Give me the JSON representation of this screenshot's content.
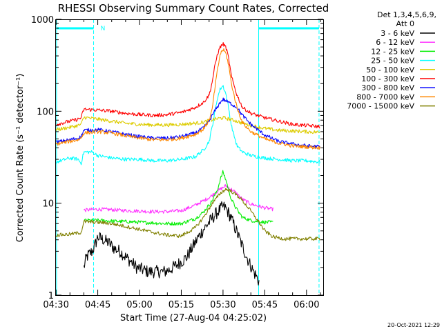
{
  "chart_data": {
    "type": "line",
    "title": "RHESSI Observing Summary Count Rates, Corrected",
    "xlabel": "Start Time (27-Aug-04 04:25:02)",
    "ylabel": "Corrected Count Rate (s⁻¹ detector⁻¹)",
    "yscale": "log",
    "ylim": [
      1,
      1000
    ],
    "xlim_minutes": [
      4.97,
      101.0
    ],
    "x_ticks": [
      {
        "m": 5,
        "label": "04:30"
      },
      {
        "m": 20,
        "label": "04:45"
      },
      {
        "m": 35,
        "label": "05:00"
      },
      {
        "m": 50,
        "label": "05:15"
      },
      {
        "m": 65,
        "label": "05:30"
      },
      {
        "m": 80,
        "label": "05:45"
      },
      {
        "m": 95,
        "label": "06:00"
      }
    ],
    "y_ticks": [
      {
        "v": 1,
        "label": "1"
      },
      {
        "v": 10,
        "label": "10"
      },
      {
        "v": 100,
        "label": "100"
      },
      {
        "v": 1000,
        "label": "1000"
      }
    ],
    "legend_title": [
      "Det 1,3,4,5,6,9,",
      "Att 0"
    ],
    "legend_position": "right",
    "date_stamp": "20-Oct-2021 12:29",
    "flag_labels": [
      {
        "m": 20.5,
        "text": "N"
      }
    ],
    "markers": {
      "solid_vertical_at": [
        5.2,
        77.8
      ],
      "dashed_vertical_at": [
        18.5,
        99.5
      ],
      "top_bars": [
        [
          5.2,
          18.5
        ],
        [
          77.8,
          99.5
        ]
      ]
    },
    "series": [
      {
        "name": "3 - 6 keV",
        "color": "#000000",
        "x": [
          15,
          16,
          17,
          18,
          19,
          20,
          22,
          24,
          26,
          28,
          30,
          32,
          34,
          36,
          38,
          40,
          42,
          44,
          46,
          48,
          50,
          52,
          54,
          56,
          58,
          60,
          62,
          64,
          65,
          66,
          67,
          68,
          70,
          72,
          74,
          76,
          78
        ],
        "y": [
          2.0,
          2.6,
          2.8,
          3.0,
          3.5,
          4.3,
          4.0,
          3.7,
          3.2,
          3.0,
          2.6,
          2.3,
          2.0,
          1.9,
          1.8,
          1.8,
          1.8,
          1.8,
          1.9,
          2.1,
          2.3,
          2.6,
          3.3,
          4.2,
          5.2,
          6.2,
          7.4,
          8.6,
          9.2,
          8.8,
          7.8,
          6.8,
          4.8,
          3.4,
          2.4,
          1.8,
          1.4
        ]
      },
      {
        "name": "6 - 12 keV",
        "color": "#ff33ff",
        "x": [
          15,
          20,
          25,
          30,
          35,
          40,
          45,
          50,
          55,
          60,
          63,
          66,
          69,
          72,
          75,
          80,
          83
        ],
        "y": [
          8.4,
          8.6,
          8.5,
          8.3,
          8.2,
          8.1,
          8.1,
          8.3,
          9.5,
          11.5,
          13.5,
          15.5,
          13.5,
          11.0,
          9.8,
          8.9,
          8.6
        ]
      },
      {
        "name": "12 - 25 keV",
        "color": "#00ee00",
        "x": [
          15,
          20,
          25,
          30,
          35,
          40,
          45,
          50,
          55,
          58,
          61,
          63,
          64,
          65,
          66,
          67,
          68,
          70,
          72,
          75,
          80,
          83
        ],
        "y": [
          6.5,
          6.5,
          6.4,
          6.3,
          6.2,
          6.1,
          6.0,
          6.0,
          6.8,
          8.0,
          10.5,
          14.0,
          18.0,
          22.0,
          18.0,
          14.0,
          11.0,
          8.5,
          7.0,
          6.5,
          6.2,
          6.2
        ]
      },
      {
        "name": "25 - 50 keV",
        "color": "#00ffff",
        "x": [
          5,
          10,
          13,
          14,
          15,
          18,
          20,
          25,
          30,
          35,
          40,
          45,
          50,
          55,
          58,
          60,
          61,
          62,
          63,
          64,
          65,
          66,
          67,
          68,
          70,
          72,
          75,
          80,
          85,
          90,
          95,
          100
        ],
        "y": [
          28,
          31,
          30,
          27,
          36,
          36,
          33,
          31,
          30,
          30,
          29,
          29,
          30,
          32,
          38,
          47,
          65,
          95,
          140,
          175,
          190,
          155,
          110,
          70,
          42,
          36,
          33,
          31,
          30,
          29,
          29,
          28
        ]
      },
      {
        "name": "50 - 100 keV",
        "color": "#ddcc00",
        "x": [
          5,
          10,
          13,
          14,
          15,
          20,
          25,
          30,
          35,
          40,
          45,
          50,
          55,
          58,
          60,
          62,
          64,
          65,
          66,
          68,
          70,
          72,
          75,
          80,
          85,
          90,
          95,
          100
        ],
        "y": [
          63,
          67,
          70,
          72,
          86,
          82,
          78,
          74,
          72,
          71,
          71,
          72,
          74,
          76,
          79,
          82,
          84,
          85,
          84,
          81,
          78,
          74,
          70,
          65,
          62,
          61,
          60,
          59
        ]
      },
      {
        "name": "100 - 300 keV",
        "color": "#ff0000",
        "x": [
          5,
          10,
          13,
          14,
          15,
          20,
          25,
          30,
          35,
          40,
          45,
          50,
          55,
          58,
          60,
          61,
          62,
          63,
          64,
          65,
          66,
          67,
          68,
          70,
          72,
          75,
          80,
          85,
          90,
          95,
          100
        ],
        "y": [
          72,
          78,
          82,
          85,
          105,
          103,
          100,
          95,
          92,
          90,
          92,
          97,
          110,
          125,
          150,
          200,
          300,
          420,
          500,
          540,
          500,
          380,
          240,
          150,
          110,
          95,
          85,
          78,
          72,
          70,
          68
        ]
      },
      {
        "name": "300 - 800 keV",
        "color": "#0000ff",
        "x": [
          5,
          10,
          13,
          14,
          15,
          20,
          25,
          30,
          35,
          40,
          45,
          50,
          55,
          58,
          60,
          62,
          64,
          65,
          66,
          68,
          70,
          72,
          75,
          80,
          85,
          90,
          95,
          100
        ],
        "y": [
          46,
          49,
          51,
          53,
          62,
          63,
          60,
          56,
          53,
          51,
          51,
          53,
          58,
          66,
          78,
          100,
          125,
          135,
          130,
          120,
          110,
          90,
          72,
          55,
          47,
          44,
          42,
          41
        ]
      },
      {
        "name": "800 - 7000 keV",
        "color": "#ff8800",
        "x": [
          5,
          10,
          13,
          14,
          15,
          20,
          25,
          30,
          35,
          40,
          45,
          50,
          55,
          58,
          60,
          61,
          62,
          63,
          64,
          65,
          66,
          67,
          68,
          70,
          72,
          75,
          80,
          85,
          90,
          95,
          100
        ],
        "y": [
          44,
          47,
          49,
          51,
          58,
          60,
          58,
          54,
          51,
          49,
          49,
          51,
          56,
          64,
          80,
          100,
          170,
          280,
          420,
          470,
          430,
          320,
          200,
          110,
          75,
          60,
          50,
          45,
          42,
          41,
          40
        ]
      },
      {
        "name": "7000 - 15000 keV",
        "color": "#808000",
        "x": [
          5,
          10,
          14,
          15,
          20,
          25,
          30,
          35,
          40,
          45,
          50,
          55,
          58,
          61,
          64,
          66,
          68,
          71,
          74,
          77,
          80,
          83,
          87,
          92,
          97,
          100
        ],
        "y": [
          4.5,
          4.6,
          4.8,
          6.3,
          6.2,
          6.0,
          5.6,
          5.2,
          4.8,
          4.5,
          4.4,
          5.4,
          7.0,
          9.8,
          12.8,
          14.2,
          13.5,
          11.5,
          9.0,
          6.8,
          5.0,
          4.3,
          4.1,
          4.1,
          4.1,
          4.1
        ]
      }
    ]
  }
}
